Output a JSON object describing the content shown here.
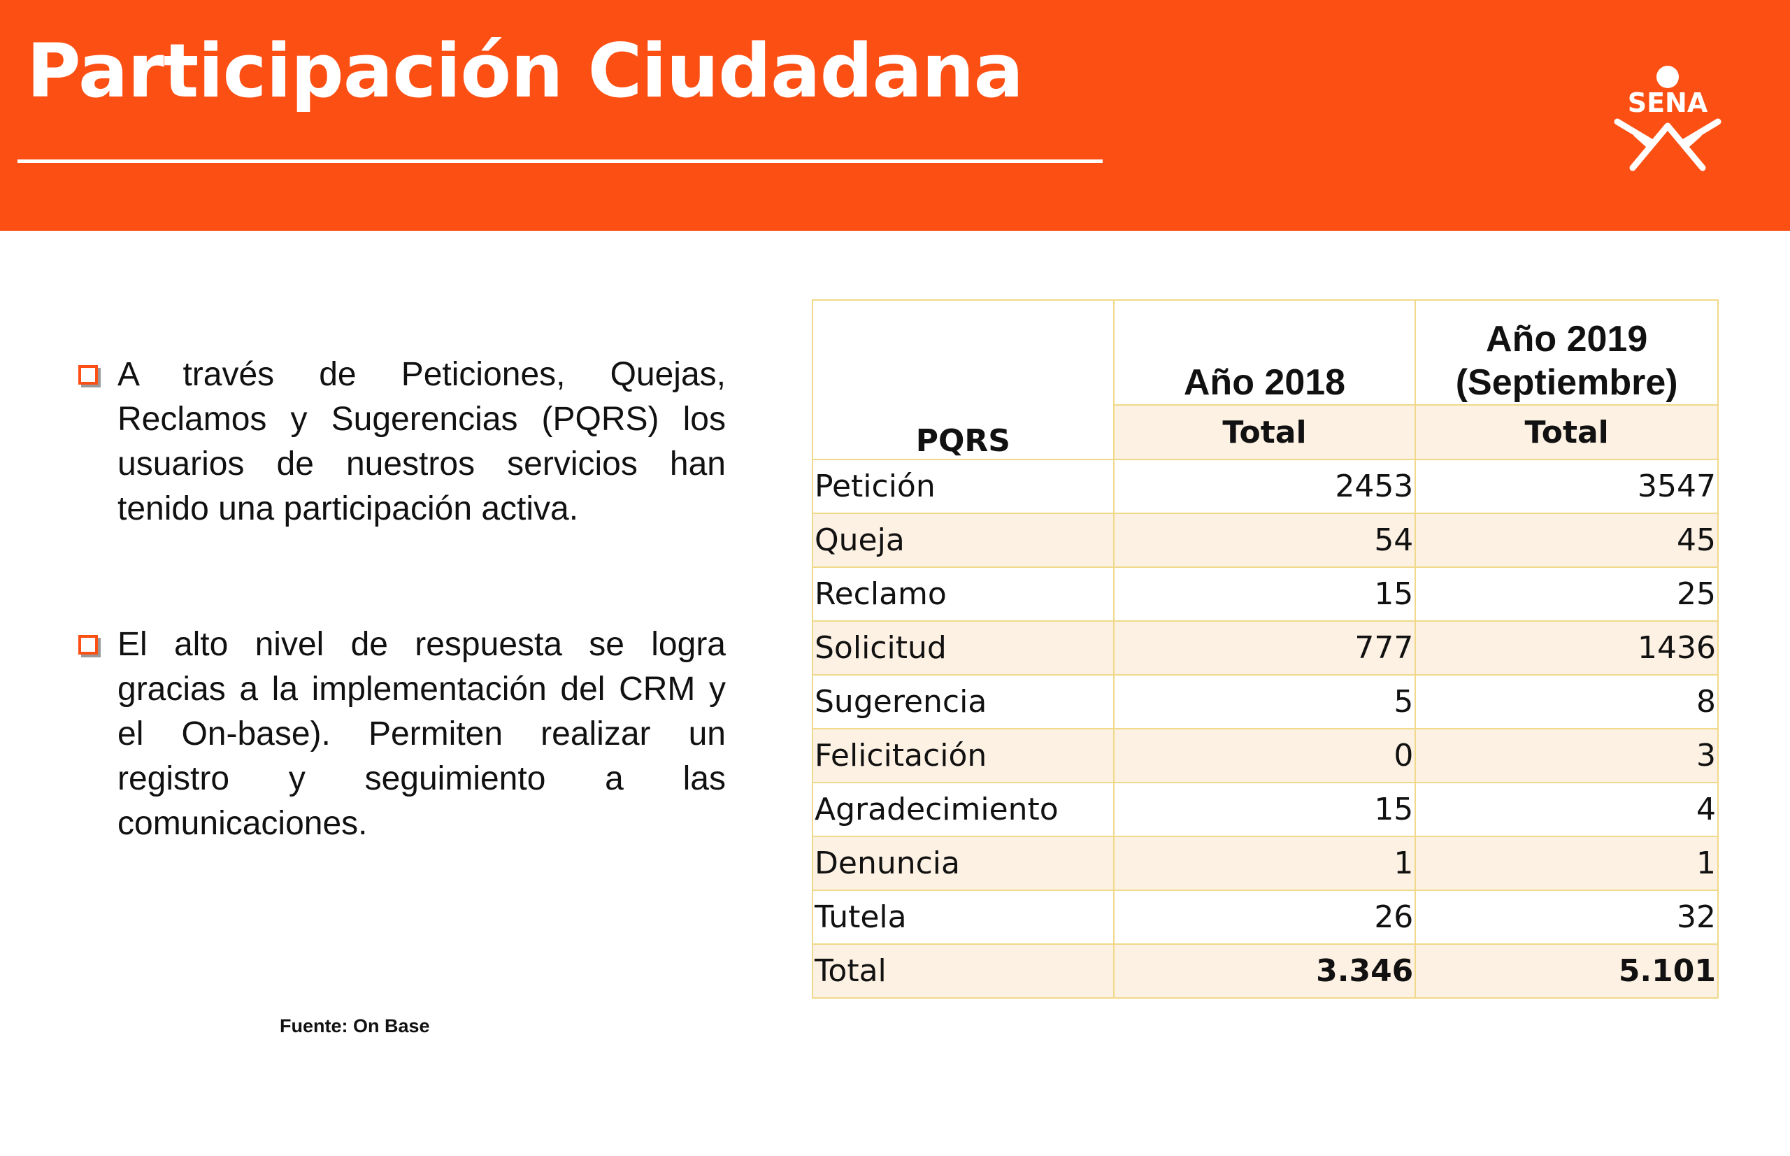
{
  "header": {
    "title": "Participación Ciudadana",
    "brand_color": "#fc4f14",
    "logo_text": "SENA"
  },
  "bullets": [
    "A través de Peticiones, Quejas, Reclamos y Sugerencias (PQRS) los usuarios de nuestros servicios han tenido una participación activa.",
    "El alto nivel de respuesta se logra gracias a la implementación del CRM y el On-base). Permiten realizar un registro y  seguimiento a las comunicaciones."
  ],
  "source": "Fuente: On Base",
  "table": {
    "row_header": "PQRS",
    "year_2018": "Año 2018",
    "year_2019": "Año 2019 (Septiembre)",
    "total_label": "Total",
    "rows": [
      {
        "label": "Petición",
        "y2018": "2453",
        "y2019": "3547"
      },
      {
        "label": "Queja",
        "y2018": "54",
        "y2019": "45"
      },
      {
        "label": "Reclamo",
        "y2018": "15",
        "y2019": "25"
      },
      {
        "label": "Solicitud",
        "y2018": "777",
        "y2019": "1436"
      },
      {
        "label": "Sugerencia",
        "y2018": "5",
        "y2019": "8"
      },
      {
        "label": "Felicitación",
        "y2018": "0",
        "y2019": "3"
      },
      {
        "label": "Agradecimiento",
        "y2018": "15",
        "y2019": "4"
      },
      {
        "label": "Denuncia",
        "y2018": "1",
        "y2019": "1"
      },
      {
        "label": "Tutela",
        "y2018": "26",
        "y2019": "32"
      },
      {
        "label": "Total",
        "y2018": "3.346",
        "y2019": "5.101"
      }
    ]
  }
}
